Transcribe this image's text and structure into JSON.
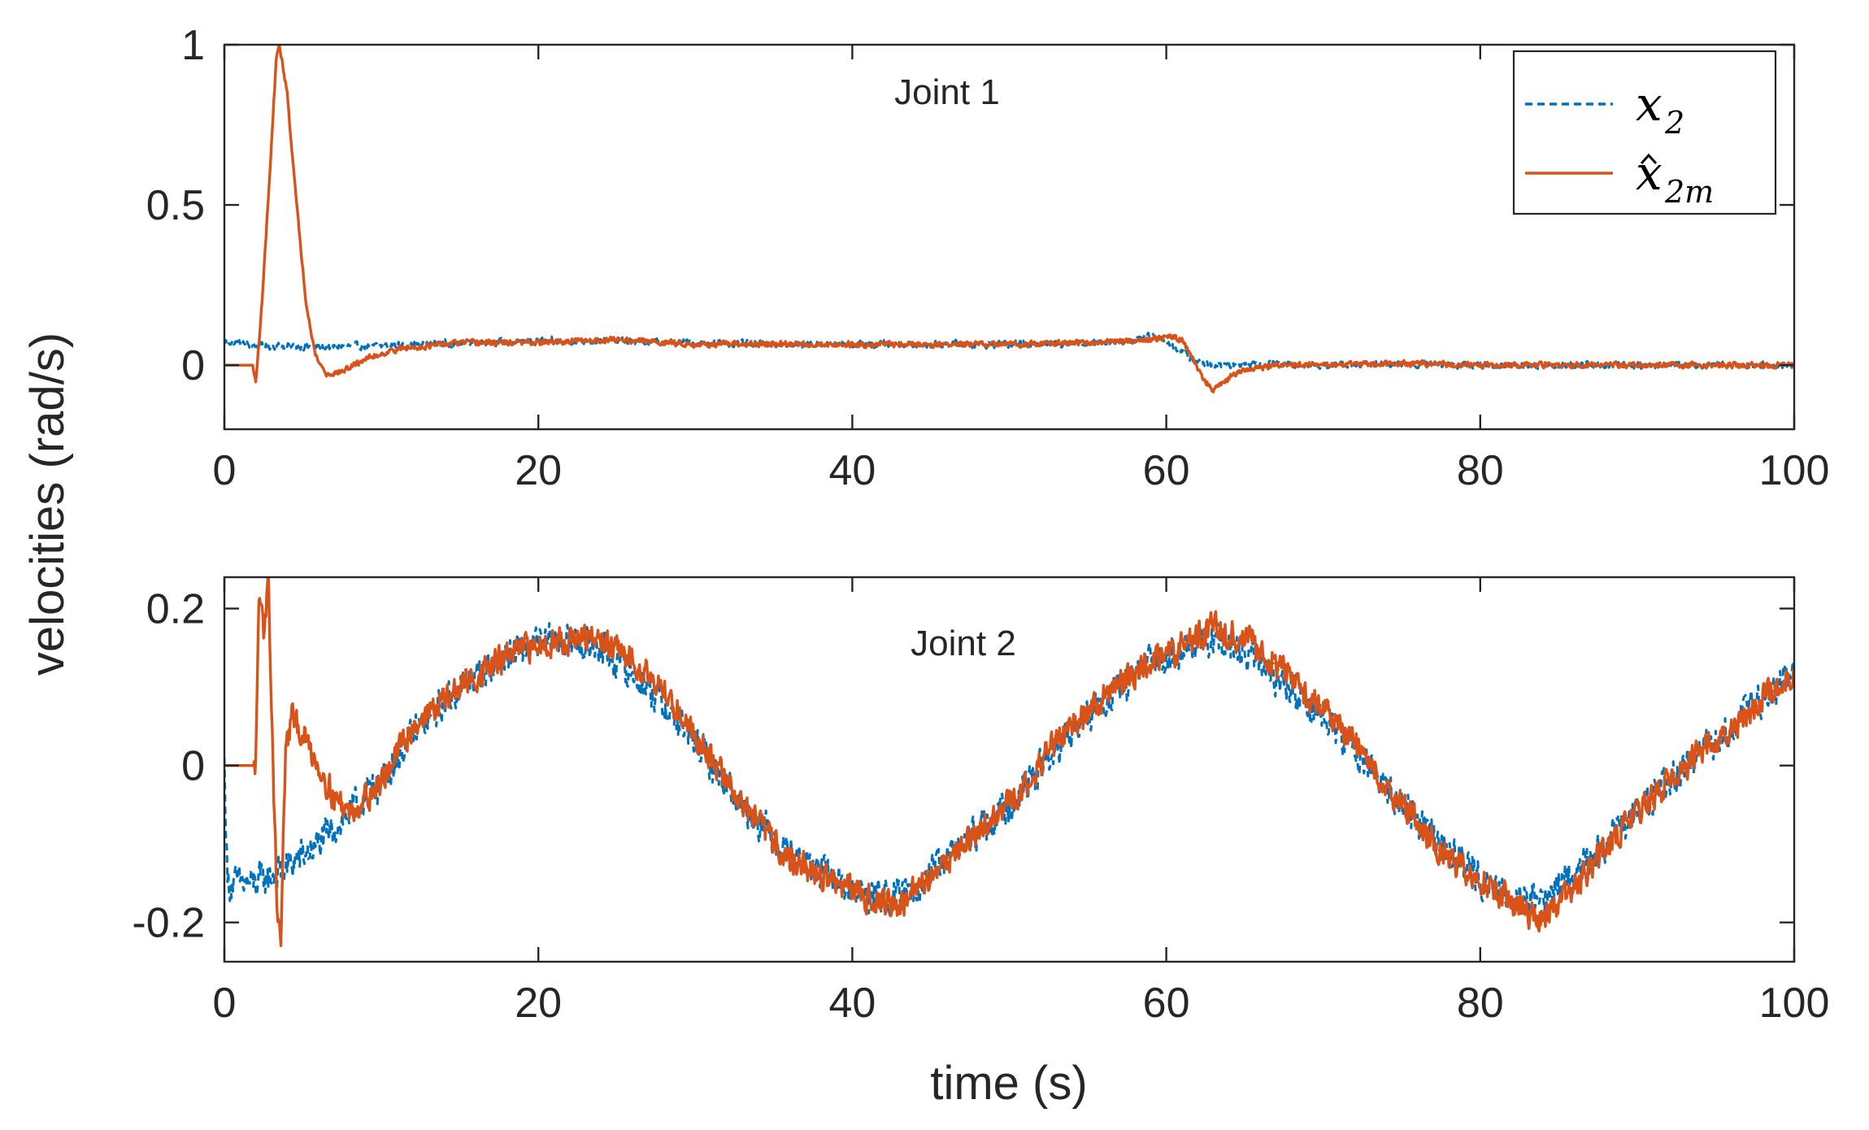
{
  "figure": {
    "ylabel": "velocities (rad/s)",
    "xlabel": "time (s)"
  },
  "colors": {
    "series_x2": "#0072BD",
    "series_x2m_hat": "#D95319",
    "axes": "#262626"
  },
  "chart_data": [
    {
      "type": "line",
      "title": "Joint 1",
      "xlabel": "",
      "ylabel": "velocities (rad/s)",
      "xlim": [
        0,
        100
      ],
      "ylim": [
        -0.2,
        1
      ],
      "xticks": [
        0,
        20,
        40,
        60,
        80,
        100
      ],
      "xtick_labels": [
        "0",
        "20",
        "40",
        "60",
        "80",
        "100"
      ],
      "yticks": [
        0,
        0.5,
        1
      ],
      "ytick_labels": [
        "0",
        "0.5",
        "1"
      ],
      "legend": {
        "position": "top-right",
        "entries": [
          {
            "series": "x2",
            "base": "x",
            "subscript": "2",
            "hat": false,
            "style": "dashed"
          },
          {
            "series": "x2m_hat",
            "base": "x",
            "subscript": "2m",
            "hat": true,
            "style": "solid"
          }
        ]
      },
      "series": [
        {
          "name": "x2",
          "style": "dashed",
          "keypoints": [
            [
              0,
              0.075
            ],
            [
              2,
              0.06
            ],
            [
              4,
              0.06
            ],
            [
              6,
              0.055
            ],
            [
              8,
              0.06
            ],
            [
              10,
              0.06
            ],
            [
              15,
              0.07
            ],
            [
              20,
              0.075
            ],
            [
              25,
              0.075
            ],
            [
              30,
              0.07
            ],
            [
              35,
              0.065
            ],
            [
              40,
              0.065
            ],
            [
              45,
              0.065
            ],
            [
              50,
              0.065
            ],
            [
              55,
              0.07
            ],
            [
              58,
              0.08
            ],
            [
              59,
              0.1
            ],
            [
              60,
              0.07
            ],
            [
              61,
              0.04
            ],
            [
              62,
              0.01
            ],
            [
              63,
              0.0
            ],
            [
              65,
              0.005
            ],
            [
              70,
              0.0
            ],
            [
              75,
              0.005
            ],
            [
              80,
              0.0
            ],
            [
              85,
              0.0
            ],
            [
              90,
              0.0
            ],
            [
              95,
              0.0
            ],
            [
              100,
              0.0
            ]
          ],
          "noise": 0.015
        },
        {
          "name": "x2m_hat",
          "style": "solid",
          "keypoints": [
            [
              0,
              0.0
            ],
            [
              1.8,
              0.0
            ],
            [
              2.0,
              -0.06
            ],
            [
              2.4,
              0.2
            ],
            [
              2.9,
              0.6
            ],
            [
              3.3,
              0.95
            ],
            [
              3.5,
              1.0
            ],
            [
              4.0,
              0.85
            ],
            [
              4.6,
              0.5
            ],
            [
              5.2,
              0.2
            ],
            [
              5.8,
              0.03
            ],
            [
              6.5,
              -0.03
            ],
            [
              7.5,
              -0.02
            ],
            [
              9,
              0.02
            ],
            [
              11,
              0.05
            ],
            [
              15,
              0.07
            ],
            [
              20,
              0.07
            ],
            [
              25,
              0.08
            ],
            [
              30,
              0.065
            ],
            [
              35,
              0.065
            ],
            [
              40,
              0.065
            ],
            [
              45,
              0.065
            ],
            [
              50,
              0.065
            ],
            [
              55,
              0.07
            ],
            [
              59,
              0.08
            ],
            [
              60,
              0.09
            ],
            [
              61,
              0.08
            ],
            [
              61.6,
              0.03
            ],
            [
              62.2,
              -0.03
            ],
            [
              63,
              -0.08
            ],
            [
              64,
              -0.04
            ],
            [
              65,
              -0.015
            ],
            [
              67,
              0.0
            ],
            [
              70,
              0.0
            ],
            [
              75,
              0.005
            ],
            [
              80,
              0.0
            ],
            [
              85,
              0.0
            ],
            [
              90,
              0.0
            ],
            [
              95,
              0.0
            ],
            [
              100,
              0.0
            ]
          ],
          "noise": 0.012
        }
      ]
    },
    {
      "type": "line",
      "title": "Joint 2",
      "xlabel": "time (s)",
      "ylabel": "velocities (rad/s)",
      "xlim": [
        0,
        100
      ],
      "ylim": [
        -0.25,
        0.24
      ],
      "xticks": [
        0,
        20,
        40,
        60,
        80,
        100
      ],
      "xtick_labels": [
        "0",
        "20",
        "40",
        "60",
        "80",
        "100"
      ],
      "yticks": [
        -0.2,
        0,
        0.2
      ],
      "ytick_labels": [
        "-0.2",
        "0",
        "0.2"
      ],
      "series": [
        {
          "name": "x2",
          "style": "dashed",
          "keypoints": [
            [
              0,
              0.0
            ],
            [
              0.2,
              -0.15
            ],
            [
              2,
              -0.15
            ],
            [
              4,
              -0.13
            ],
            [
              6,
              -0.1
            ],
            [
              8,
              -0.06
            ],
            [
              10,
              -0.02
            ],
            [
              12,
              0.04
            ],
            [
              15,
              0.1
            ],
            [
              18,
              0.14
            ],
            [
              21,
              0.16
            ],
            [
              24,
              0.15
            ],
            [
              27,
              0.1
            ],
            [
              30,
              0.03
            ],
            [
              33,
              -0.05
            ],
            [
              36,
              -0.11
            ],
            [
              40,
              -0.16
            ],
            [
              43,
              -0.17
            ],
            [
              46,
              -0.12
            ],
            [
              50,
              -0.05
            ],
            [
              53,
              0.02
            ],
            [
              56,
              0.08
            ],
            [
              59,
              0.13
            ],
            [
              61,
              0.15
            ],
            [
              63,
              0.16
            ],
            [
              66,
              0.13
            ],
            [
              69,
              0.08
            ],
            [
              72,
              0.02
            ],
            [
              75,
              -0.05
            ],
            [
              78,
              -0.11
            ],
            [
              81,
              -0.16
            ],
            [
              84,
              -0.17
            ],
            [
              87,
              -0.12
            ],
            [
              90,
              -0.06
            ],
            [
              93,
              0.0
            ],
            [
              96,
              0.05
            ],
            [
              100,
              0.12
            ]
          ],
          "noise": 0.03
        },
        {
          "name": "x2m_hat",
          "style": "solid",
          "keypoints": [
            [
              0,
              0.0
            ],
            [
              2,
              0.0
            ],
            [
              2.2,
              0.2
            ],
            [
              2.5,
              0.17
            ],
            [
              2.8,
              0.24
            ],
            [
              3.1,
              0.0
            ],
            [
              3.4,
              -0.2
            ],
            [
              3.6,
              -0.22
            ],
            [
              3.9,
              0.02
            ],
            [
              4.3,
              0.06
            ],
            [
              5,
              0.04
            ],
            [
              6,
              0.0
            ],
            [
              7,
              -0.04
            ],
            [
              8,
              -0.06
            ],
            [
              10,
              -0.02
            ],
            [
              12,
              0.05
            ],
            [
              15,
              0.1
            ],
            [
              18,
              0.14
            ],
            [
              21,
              0.16
            ],
            [
              24,
              0.16
            ],
            [
              27,
              0.12
            ],
            [
              30,
              0.04
            ],
            [
              33,
              -0.05
            ],
            [
              36,
              -0.12
            ],
            [
              40,
              -0.16
            ],
            [
              43,
              -0.18
            ],
            [
              46,
              -0.12
            ],
            [
              50,
              -0.05
            ],
            [
              53,
              0.03
            ],
            [
              56,
              0.09
            ],
            [
              59,
              0.13
            ],
            [
              61,
              0.15
            ],
            [
              63,
              0.18
            ],
            [
              66,
              0.15
            ],
            [
              69,
              0.09
            ],
            [
              72,
              0.03
            ],
            [
              75,
              -0.05
            ],
            [
              78,
              -0.12
            ],
            [
              81,
              -0.16
            ],
            [
              84,
              -0.2
            ],
            [
              87,
              -0.13
            ],
            [
              90,
              -0.06
            ],
            [
              93,
              0.0
            ],
            [
              96,
              0.05
            ],
            [
              100,
              0.12
            ]
          ],
          "noise": 0.025
        }
      ]
    }
  ]
}
